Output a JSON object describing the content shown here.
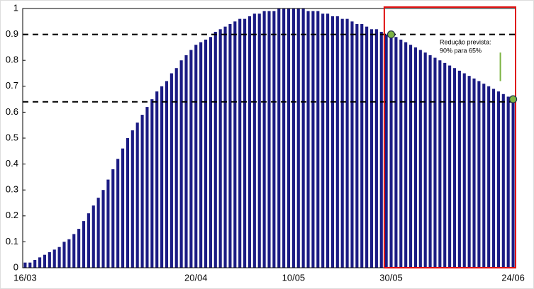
{
  "chart_data": {
    "type": "bar",
    "categories": [
      "16/03",
      null,
      null,
      null,
      null,
      null,
      null,
      null,
      null,
      null,
      null,
      null,
      null,
      null,
      null,
      null,
      null,
      null,
      null,
      null,
      null,
      null,
      null,
      null,
      null,
      null,
      null,
      null,
      null,
      null,
      null,
      null,
      null,
      null,
      null,
      "20/04",
      null,
      null,
      null,
      null,
      null,
      null,
      null,
      null,
      null,
      null,
      null,
      null,
      null,
      null,
      null,
      null,
      null,
      null,
      null,
      "10/05",
      null,
      null,
      null,
      null,
      null,
      null,
      null,
      null,
      null,
      null,
      null,
      null,
      null,
      null,
      null,
      null,
      null,
      null,
      null,
      "30/05",
      null,
      null,
      null,
      null,
      null,
      null,
      null,
      null,
      null,
      null,
      null,
      null,
      null,
      null,
      null,
      null,
      null,
      null,
      null,
      null,
      null,
      null,
      null,
      null,
      "24/06"
    ],
    "values": [
      0.02,
      0.02,
      0.03,
      0.04,
      0.05,
      0.06,
      0.07,
      0.08,
      0.1,
      0.11,
      0.13,
      0.15,
      0.18,
      0.21,
      0.24,
      0.27,
      0.3,
      0.34,
      0.38,
      0.42,
      0.46,
      0.5,
      0.53,
      0.56,
      0.59,
      0.62,
      0.65,
      0.68,
      0.7,
      0.72,
      0.75,
      0.77,
      0.8,
      0.82,
      0.84,
      0.86,
      0.87,
      0.88,
      0.89,
      0.91,
      0.92,
      0.93,
      0.94,
      0.95,
      0.96,
      0.96,
      0.97,
      0.98,
      0.98,
      0.99,
      0.99,
      0.99,
      1.0,
      1.0,
      1.0,
      1.0,
      1.0,
      1.0,
      0.99,
      0.99,
      0.99,
      0.98,
      0.98,
      0.97,
      0.97,
      0.96,
      0.96,
      0.95,
      0.94,
      0.94,
      0.93,
      0.92,
      0.92,
      0.91,
      0.9,
      0.9,
      0.89,
      0.88,
      0.87,
      0.86,
      0.85,
      0.84,
      0.83,
      0.82,
      0.81,
      0.8,
      0.79,
      0.78,
      0.77,
      0.76,
      0.75,
      0.74,
      0.73,
      0.72,
      0.71,
      0.7,
      0.69,
      0.68,
      0.67,
      0.66,
      0.65
    ],
    "color": "#1c1c84",
    "ylim": [
      0,
      1
    ],
    "yticks": [
      0,
      0.1,
      0.2,
      0.3,
      0.4,
      0.5,
      0.6,
      0.7,
      0.8,
      0.9,
      1
    ],
    "reference_lines": [
      0.9,
      0.64
    ],
    "highlight_points": [
      {
        "category": "30/05",
        "value": 0.9,
        "color": "#7cb342"
      },
      {
        "category": "24/06",
        "value": 0.65,
        "color": "#7cb342"
      }
    ],
    "highlight_region": {
      "from": "30/05",
      "to": "24/06",
      "color": "#e01010"
    },
    "annotation": [
      "Redução prevista:",
      "90% para 65%"
    ]
  }
}
